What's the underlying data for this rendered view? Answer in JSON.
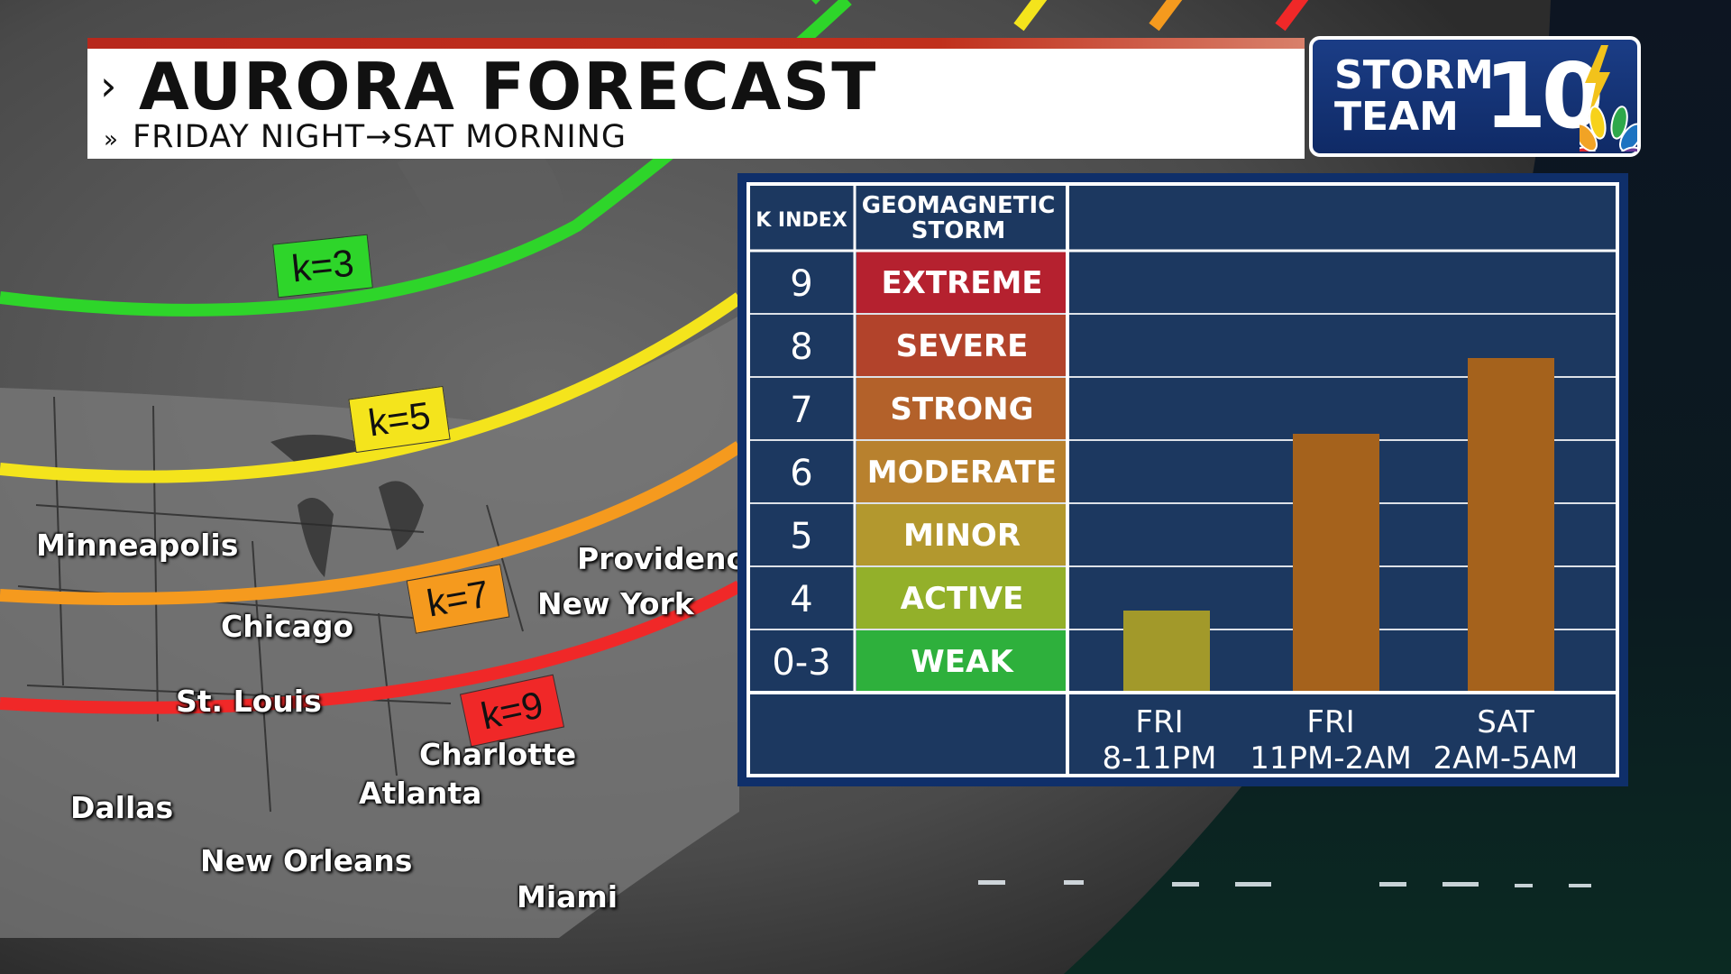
{
  "header": {
    "title": "AURORA FORECAST",
    "subtitle": "FRIDAY NIGHT→SAT MORNING",
    "chevron": "›",
    "subchevron": "»"
  },
  "logo": {
    "line1": "STORM",
    "line2": "TEAM",
    "number": "10",
    "icons": [
      "lightning-bolt-icon",
      "peacock-icon"
    ]
  },
  "map": {
    "cities": [
      "Minneapolis",
      "Chicago",
      "St. Louis",
      "Dallas",
      "New Orleans",
      "Atlanta",
      "Charlotte",
      "Miami",
      "New York",
      "Providence"
    ],
    "k_lines": [
      {
        "label": "k=3",
        "color": "#2ed52a"
      },
      {
        "label": "k=5",
        "color": "#f4e41c"
      },
      {
        "label": "k=7",
        "color": "#f59a1e"
      },
      {
        "label": "k=9",
        "color": "#f02828"
      }
    ]
  },
  "chart_data": {
    "type": "bar",
    "header_left": "K INDEX",
    "header_mid": "GEOMAGNETIC STORM",
    "scale": [
      {
        "k": "9",
        "storm": "EXTREME",
        "color": "#b5212f"
      },
      {
        "k": "8",
        "storm": "SEVERE",
        "color": "#b2432b"
      },
      {
        "k": "7",
        "storm": "STRONG",
        "color": "#b3612a"
      },
      {
        "k": "6",
        "storm": "MODERATE",
        "color": "#b8812e"
      },
      {
        "k": "5",
        "storm": "MINOR",
        "color": "#b3982e"
      },
      {
        "k": "4",
        "storm": "ACTIVE",
        "color": "#93b02a"
      },
      {
        "k": "0-3",
        "storm": "WEAK",
        "color": "#2eb03c"
      }
    ],
    "ylim": [
      3,
      10
    ],
    "categories": [
      {
        "line1": "FRI",
        "line2": "8-11PM"
      },
      {
        "line1": "FRI",
        "line2": "11PM-2AM"
      },
      {
        "line1": "SAT",
        "line2": "2AM-5AM"
      }
    ],
    "values": [
      4.3,
      7.1,
      8.3
    ],
    "bar_colors": [
      "#a2992a",
      "#a5621c",
      "#a5621c"
    ]
  }
}
